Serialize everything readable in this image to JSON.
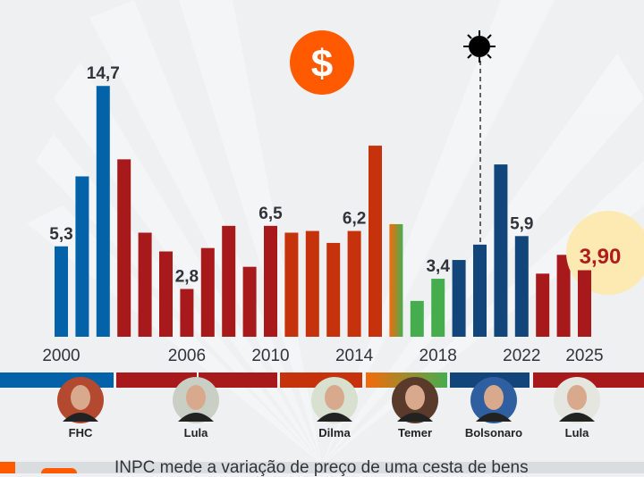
{
  "chart_data": {
    "type": "bar",
    "title": "",
    "xlabel": "",
    "ylabel": "",
    "ylim": [
      0,
      15
    ],
    "grid": false,
    "x": [
      2000,
      2001,
      2002,
      2003,
      2004,
      2005,
      2006,
      2007,
      2008,
      2009,
      2010,
      2011,
      2012,
      2013,
      2014,
      2015,
      2016,
      2017,
      2018,
      2019,
      2020,
      2021,
      2022,
      2023,
      2024,
      2025
    ],
    "values": [
      5.3,
      9.4,
      14.7,
      10.4,
      6.1,
      5.0,
      2.8,
      5.2,
      6.5,
      4.1,
      6.5,
      6.1,
      6.2,
      5.5,
      6.2,
      11.2,
      6.6,
      2.1,
      3.4,
      4.5,
      5.4,
      10.1,
      5.9,
      3.7,
      4.8,
      3.9
    ],
    "government": [
      "FHC",
      "FHC",
      "FHC",
      "Lula",
      "Lula",
      "Lula",
      "Lula",
      "Lula",
      "Lula",
      "Lula",
      "Lula",
      "Dilma",
      "Dilma",
      "Dilma",
      "Dilma",
      "Dilma",
      "Dilma/Temer",
      "Temer",
      "Temer",
      "Bolsonaro",
      "Bolsonaro",
      "Bolsonaro",
      "Bolsonaro",
      "Lula",
      "Lula",
      "Lula"
    ],
    "data_labels": [
      {
        "year": 2000,
        "text": "5,3"
      },
      {
        "year": 2002,
        "text": "14,7"
      },
      {
        "year": 2006,
        "text": "2,8"
      },
      {
        "year": 2010,
        "text": "6,5"
      },
      {
        "year": 2014,
        "text": "6,2"
      },
      {
        "year": 2018,
        "text": "3,4"
      },
      {
        "year": 2022,
        "text": "5,9"
      }
    ],
    "highlight": {
      "year": 2025,
      "text": "3,90"
    },
    "x_tick_labels": [
      "2000",
      "2006",
      "2010",
      "2014",
      "2018",
      "2022",
      "2025"
    ],
    "annotations": [
      {
        "year": 2020,
        "icon": "virus-icon"
      }
    ]
  },
  "colors": {
    "FHC": "#0462a9",
    "Lula": "#a8191b",
    "Dilma": "#c5320b",
    "Temer": "#46ad4f",
    "Bolsonaro": "#12467b",
    "highlight_bg": "#fde9b2",
    "highlight_text": "#b01c1c",
    "accent": "#ff5a00"
  },
  "presidents": [
    {
      "name": "FHC"
    },
    {
      "name": "Lula"
    },
    {
      "name": "Dilma"
    },
    {
      "name": "Temer"
    },
    {
      "name": "Bolsonaro"
    },
    {
      "name": "Lula"
    }
  ],
  "icons": {
    "top": "dollar-icon",
    "covid": "virus-icon",
    "dollar_symbol": "$"
  },
  "footer": {
    "text": "INPC mede a variação de preço de uma cesta de bens"
  }
}
